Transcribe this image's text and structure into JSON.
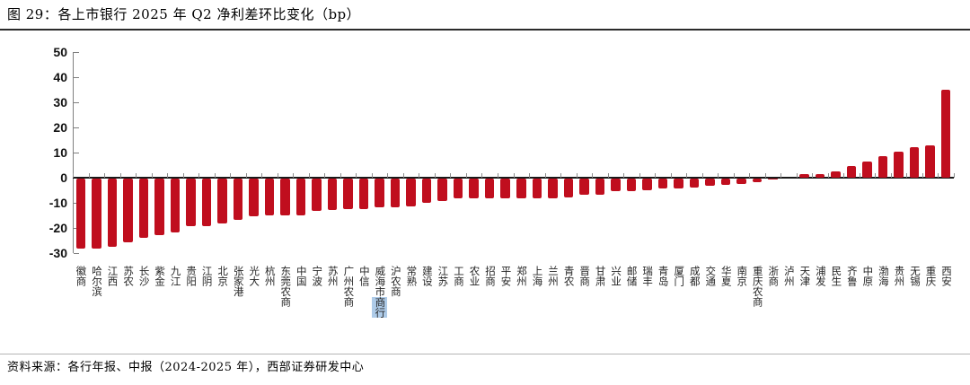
{
  "header": {
    "title": "图 29：各上市银行 2025 年 Q2 净利差环比变化（bp）"
  },
  "footer": {
    "source": "资料来源：各行年报、中报（2024-2025 年），西部证券研发中心"
  },
  "colors": {
    "bar_red": "#c00e1e",
    "selection_highlight": "#aecbe8",
    "axis_dark": "#1a1a1a",
    "axis_gray": "#7f7f7f"
  },
  "chart_data": {
    "type": "bar",
    "title": "各上市银行 2025 年 Q2 净利差环比变化（bp）",
    "xlabel": "",
    "ylabel": "",
    "ylim": [
      -30,
      50
    ],
    "yticks": [
      50,
      40,
      30,
      20,
      10,
      0,
      -10,
      -20,
      -30
    ],
    "grid": false,
    "legend": "none",
    "bar_color": "#c00e1e",
    "categories": [
      "徽商",
      "哈尔滨",
      "江西",
      "苏农",
      "长沙",
      "紫金",
      "九江",
      "贵阳",
      "江阴",
      "北京",
      "张家港",
      "光大",
      "杭州",
      "东莞农商",
      "中国",
      "宁波",
      "苏州",
      "广州农商",
      "中信",
      "威海市商行",
      "沪农商",
      "常熟",
      "建设",
      "江苏",
      "工商",
      "农业",
      "招商",
      "平安",
      "郑州",
      "上海",
      "兰州",
      "青农",
      "晋商",
      "甘肃",
      "兴业",
      "邮储",
      "瑞丰",
      "青岛",
      "厦门",
      "成都",
      "交通",
      "华夏",
      "南京",
      "重庆农商",
      "浙商",
      "泸州",
      "天津",
      "浦发",
      "民生",
      "齐鲁",
      "中原",
      "渤海",
      "贵州",
      "无锡",
      "重庆",
      "西安"
    ],
    "values": [
      -28,
      -28,
      -27,
      -25.5,
      -23.5,
      -22.5,
      -21.5,
      -19,
      -19,
      -18,
      -16.5,
      -15,
      -14.5,
      -14.5,
      -14.5,
      -13,
      -12.5,
      -12,
      -12,
      -11.5,
      -11.5,
      -11,
      -9.5,
      -9,
      -8,
      -8,
      -8,
      -8,
      -8,
      -8,
      -8,
      -7.5,
      -6.5,
      -6.5,
      -5,
      -5,
      -4.5,
      -4,
      -4,
      -3.5,
      -3,
      -2.5,
      -2,
      -1.5,
      -0.3,
      0,
      1.5,
      1.5,
      2.5,
      4.5,
      6.5,
      8.5,
      10.5,
      12,
      13,
      35
    ],
    "highlight": {
      "category_index": 19,
      "category": "威海市商行",
      "text": "商行",
      "color": "#aecbe8"
    }
  }
}
